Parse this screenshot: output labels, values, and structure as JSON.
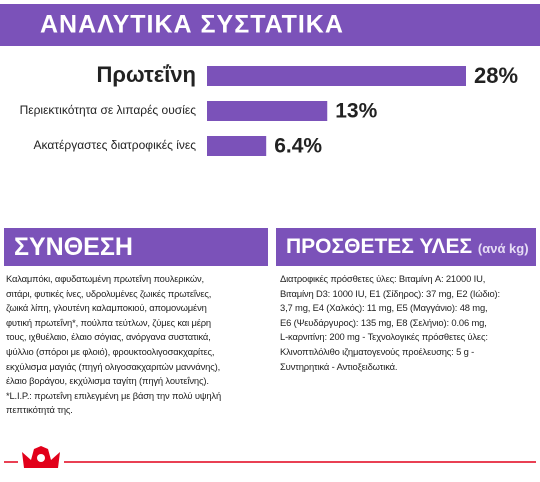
{
  "chart_data": {
    "type": "bar",
    "orientation": "horizontal",
    "title": "ΑΝΑΛΥΤΙΚΑ ΣΥΣΤΑΤΙΚΑ",
    "categories": [
      "Πρωτεΐνη",
      "Περιεκτικότητα σε λιπαρές ουσίες",
      "Ακατέργαστες διατροφικές ίνες"
    ],
    "values": [
      28,
      13,
      6.4
    ],
    "value_labels": [
      "28%",
      "13%",
      "6.4%"
    ],
    "color": "#7b52b9"
  },
  "composition": {
    "title": "ΣΥΝΘΕΣΗ",
    "lines": [
      "Καλαμπόκι, αφυδατωμένη πρωτεΐνη πουλερικών,",
      "σιτάρι, φυτικές ίνες, υδρολυμένες ζωικές πρωτεΐνες,",
      "ζωικά λίπη, γλουτένη καλαμποκιού, απομονωμένη",
      "φυτική πρωτεΐνη*, πούλπα τεύτλων, ζύμες και μέρη",
      "τους, ιχθυέλαιο, έλαιο σόγιας, ανόργανα συστατικά,",
      "ψύλλιο (σπόροι με φλοιό), φρουκτοολιγοσακχαρίτες,",
      "εκχύλισμα μαγιάς (πηγή ολιγοσακχαριτών μαννάνης),",
      "έλαιο βοράγου, εκχύλισμα ταγίτη (πηγή λουτεΐνης).",
      "*L.I.P.: πρωτεΐνη επιλεγμένη με βάση την πολύ υψηλή",
      "πεπτικότητά της."
    ]
  },
  "additives": {
    "title": "ΠΡΟΣΘΕΤΕΣ ΥΛΕΣ",
    "unit": "(ανά kg)",
    "lines": [
      "Διατροφικές πρόσθετες ύλες: Βιταμίνη A: 21000 IU,",
      "Βιταμίνη D3: 1000 IU, E1 (Σίδηρος): 37 mg, E2 (Ιώδιο):",
      "3,7 mg, E4 (Χαλκός): 11 mg, E5 (Μαγγάνιο): 48 mg,",
      "E6 (Ψευδάργυρος): 135 mg, E8 (Σελήνιο): 0.06 mg,",
      "L-καρνιτίνη: 200 mg - Τεχνολογικές πρόσθετες ύλες:",
      "Κλινοπτιλόλιθο ιζηματογενούς προέλευσης: 5 g -",
      "Συντηρητικά - Αντιοξειδωτικά."
    ]
  }
}
